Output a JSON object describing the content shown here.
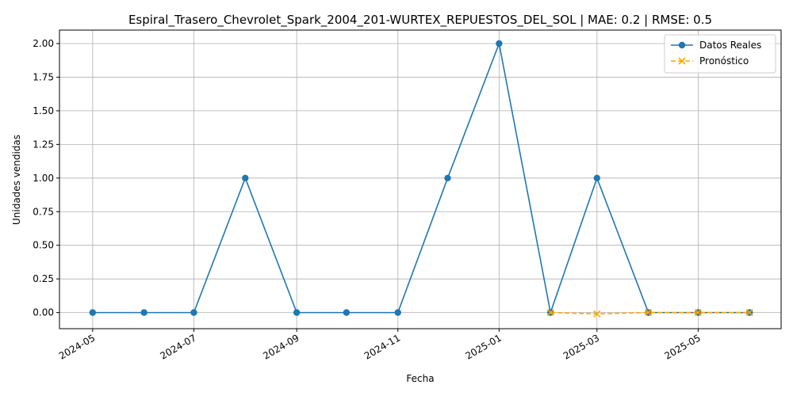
{
  "chart_data": {
    "type": "line",
    "title": "Espiral_Trasero_Chevrolet_Spark_2004_201-WURTEX_REPUESTOS_DEL_SOL | MAE: 0.2 | RMSE: 0.5",
    "xlabel": "Fecha",
    "ylabel": "Unidades vendidas",
    "ylim": [
      -0.12,
      2.1
    ],
    "xlim": [
      "2024-04-11",
      "2025-06-20"
    ],
    "grid": true,
    "legend_position": "top-right",
    "x_ticks": [
      "2024-05",
      "2024-07",
      "2024-09",
      "2024-11",
      "2025-01",
      "2025-03",
      "2025-05"
    ],
    "x_tick_dates": [
      "2024-05-01",
      "2024-07-01",
      "2024-09-01",
      "2024-11-01",
      "2025-01-01",
      "2025-03-01",
      "2025-05-01"
    ],
    "y_ticks": [
      "0.00",
      "0.25",
      "0.50",
      "0.75",
      "1.00",
      "1.25",
      "1.50",
      "1.75",
      "2.00"
    ],
    "y_tick_values": [
      0,
      0.25,
      0.5,
      0.75,
      1.0,
      1.25,
      1.5,
      1.75,
      2.0
    ],
    "series": [
      {
        "name": "Datos Reales",
        "color": "#1f77b4",
        "style": "solid",
        "marker": "circle",
        "x": [
          "2024-05-01",
          "2024-06-01",
          "2024-07-01",
          "2024-08-01",
          "2024-09-01",
          "2024-10-01",
          "2024-11-01",
          "2024-12-01",
          "2025-01-01",
          "2025-02-01",
          "2025-03-01",
          "2025-04-01",
          "2025-05-01",
          "2025-06-01"
        ],
        "values": [
          0,
          0,
          0,
          1,
          0,
          0,
          0,
          1,
          2,
          0,
          1,
          0,
          0,
          0
        ]
      },
      {
        "name": "Pronóstico",
        "color": "#ffa500",
        "style": "dashed",
        "marker": "x",
        "x": [
          "2025-02-01",
          "2025-03-01",
          "2025-04-01",
          "2025-05-01",
          "2025-06-01"
        ],
        "values": [
          0.0,
          -0.01,
          0.0,
          0.0,
          0.0
        ]
      }
    ]
  }
}
